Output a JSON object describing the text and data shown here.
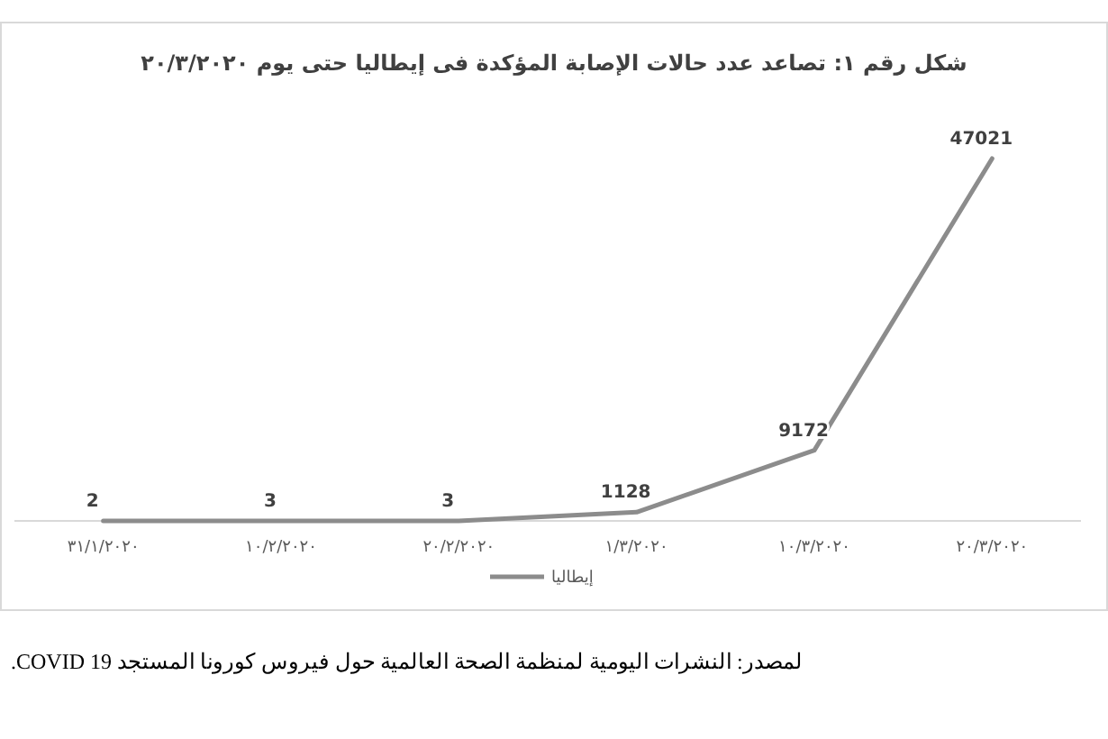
{
  "chart_data": {
    "type": "line",
    "title": "شكل رقم ١: تصاعد عدد حالات الإصابة المؤكدة فى إيطاليا حتى يوم ٢٠/٣/٢٠٢٠",
    "categories": [
      "٣١/١/٢٠٢٠",
      "١٠/٢/٢٠٢٠",
      "٢٠/٢/٢٠٢٠",
      "١/٣/٢٠٢٠",
      "١٠/٣/٢٠٢٠",
      "٢٠/٣/٢٠٢٠"
    ],
    "series": [
      {
        "name": "إيطاليا",
        "color": "#8c8c8c",
        "values": [
          2,
          3,
          3,
          1128,
          9172,
          47021
        ]
      }
    ],
    "data_labels": true,
    "legend": "bottom",
    "marker": "none",
    "line_style": "solid",
    "annotations": [
      "لمصدر: النشرات اليومية لمنظمة الصحة العالمية حول فيروس كورونا المستجد COVID 19."
    ]
  }
}
